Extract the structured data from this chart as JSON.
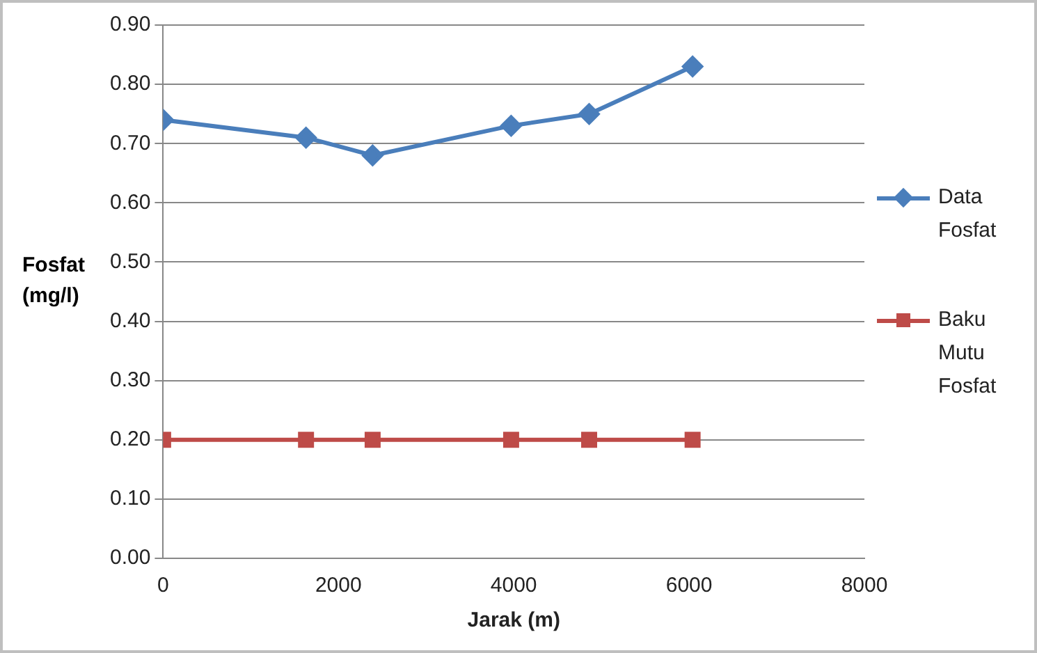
{
  "chart_data": {
    "type": "line",
    "xlabel": "Jarak (m)",
    "ylabel": "Fosfat (mg/l)",
    "xlim": [
      0,
      8000
    ],
    "xticks": [
      0,
      2000,
      4000,
      6000,
      8000
    ],
    "ylim": [
      0,
      0.9
    ],
    "yticks": [
      {
        "value": 0,
        "label": "0.00"
      },
      {
        "value": 0.1,
        "label": "0.10"
      },
      {
        "value": 0.2,
        "label": "0.20"
      },
      {
        "value": 0.3,
        "label": "0.30"
      },
      {
        "value": 0.4,
        "label": "0.40"
      },
      {
        "value": 0.5,
        "label": "0.50"
      },
      {
        "value": 0.6,
        "label": "0.60"
      },
      {
        "value": 0.7,
        "label": "0.70"
      },
      {
        "value": 0.8,
        "label": "0.80"
      },
      {
        "value": 0.9,
        "label": "0.90"
      }
    ],
    "grid": "y",
    "legend": "right",
    "x": [
      0,
      1630,
      2390,
      3970,
      4860,
      6040
    ],
    "series": [
      {
        "name": "Data Fosfat",
        "color": "#4a7ebb",
        "marker": "diamond",
        "values": [
          0.74,
          0.71,
          0.68,
          0.73,
          0.75,
          0.83
        ]
      },
      {
        "name": "Baku Mutu Fosfat",
        "color": "#be4b48",
        "marker": "square",
        "values": [
          0.2,
          0.2,
          0.2,
          0.2,
          0.2,
          0.2
        ]
      }
    ]
  }
}
